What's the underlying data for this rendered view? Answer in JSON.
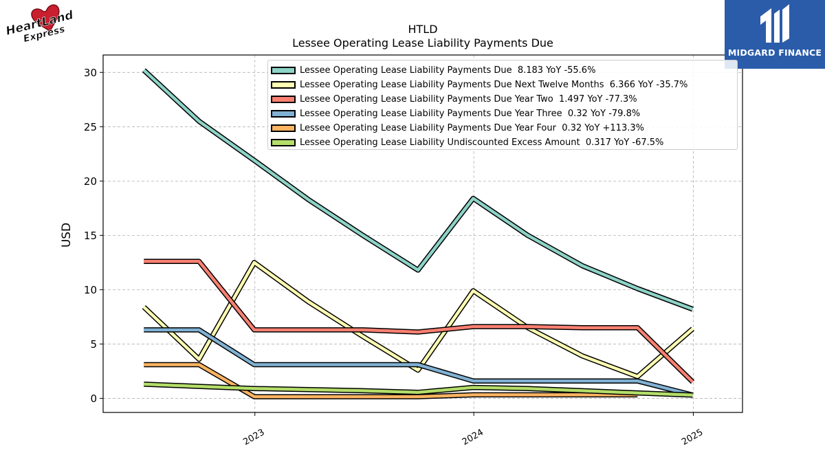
{
  "brand_left": {
    "name": "Heartland Express",
    "line1": "HeartLand",
    "line2": "Express"
  },
  "brand_right": {
    "name": "MIDGARD FINANCE",
    "bg_color": "#2a5caa"
  },
  "chart_data": {
    "type": "line",
    "title": "HTLD",
    "subtitle": "Lessee Operating Lease Liability Payments Due",
    "xlabel": "",
    "ylabel": "USD",
    "x_ticks": [
      "2023",
      "2024",
      "2025"
    ],
    "y_ticks": [
      0,
      5,
      10,
      15,
      20,
      25,
      30
    ],
    "ylim": [
      -1.3,
      31.6
    ],
    "xlim": [
      "2022-04-23",
      "2025-03-24"
    ],
    "grid": true,
    "legend_position": "top-right",
    "x": [
      "2022-06-30",
      "2022-09-30",
      "2022-12-31",
      "2023-03-31",
      "2023-06-30",
      "2023-09-30",
      "2023-12-31",
      "2024-03-31",
      "2024-06-30",
      "2024-09-30",
      "2024-12-31"
    ],
    "series": [
      {
        "name": "Lessee Operating Lease Liability Payments Due",
        "legend": "Lessee Operating Lease Liability Payments Due  8.183 YoY -55.6%",
        "color": "#8dd3c7",
        "values": [
          30.2,
          25.5,
          21.9,
          18.3,
          15.0,
          11.8,
          18.4,
          15.0,
          12.2,
          10.1,
          8.2
        ]
      },
      {
        "name": "Lessee Operating Lease Liability Payments Due Next Twelve Months",
        "legend": "Lessee Operating Lease Liability Payments Due Next Twelve Months  6.366 YoY -35.7%",
        "color": "#ffffb3",
        "values": [
          8.4,
          3.6,
          12.5,
          8.9,
          5.7,
          2.6,
          9.9,
          6.5,
          3.9,
          2.0,
          6.4
        ]
      },
      {
        "name": "Lessee Operating Lease Liability Payments Due Year Two",
        "legend": "Lessee Operating Lease Liability Payments Due Year Two  1.497 YoY -77.3%",
        "color": "#fb8072",
        "values": [
          12.6,
          12.6,
          6.3,
          6.3,
          6.3,
          6.1,
          6.6,
          6.6,
          6.5,
          6.5,
          1.5
        ]
      },
      {
        "name": "Lessee Operating Lease Liability Payments Due Year Three",
        "legend": "Lessee Operating Lease Liability Payments Due Year Three  0.32 YoY -79.8%",
        "color": "#80b1d3",
        "values": [
          6.3,
          6.3,
          3.1,
          3.1,
          3.1,
          3.1,
          1.6,
          1.6,
          1.6,
          1.6,
          0.3
        ]
      },
      {
        "name": "Lessee Operating Lease Liability Payments Due Year Four",
        "legend": "Lessee Operating Lease Liability Payments Due Year Four  0.32 YoY +113.3%",
        "color": "#fdb462",
        "values": [
          3.1,
          3.1,
          0.15,
          0.15,
          0.15,
          0.15,
          0.32,
          0.32,
          0.32,
          0.32,
          null
        ]
      },
      {
        "name": "Lessee Operating Lease Liability Undiscounted Excess Amount",
        "legend": "Lessee Operating Lease Liability Undiscounted Excess Amount  0.317 YoY -67.5%",
        "color": "#b3de69",
        "values": [
          1.3,
          1.1,
          0.9,
          0.8,
          0.7,
          0.55,
          1.0,
          0.9,
          0.7,
          0.5,
          0.3
        ]
      }
    ]
  }
}
